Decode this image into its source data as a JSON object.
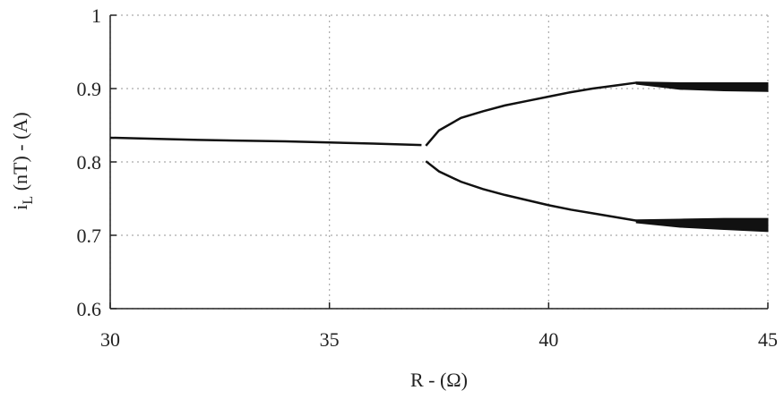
{
  "chart_data": {
    "type": "line",
    "xlabel": "R - (Ω)",
    "ylabel_main": "i",
    "ylabel_sub": "L",
    "ylabel_rest": " (nT) - (A)",
    "xlim": [
      30,
      45
    ],
    "xticks": [
      30,
      35,
      40,
      45
    ],
    "ylim": [
      0.6,
      1
    ],
    "yticks": [
      0.6,
      0.7,
      0.8,
      0.9,
      1
    ],
    "grid": true,
    "series": [
      {
        "color": "#111111",
        "x": [
          30,
          32,
          34,
          36,
          37.1
        ],
        "values": [
          0.833,
          0.83,
          0.828,
          0.825,
          0.823
        ]
      },
      {
        "color": "#111111",
        "x": [
          37.2,
          37.5,
          38,
          38.5,
          39,
          39.5,
          40,
          40.5,
          41,
          41.5,
          42
        ],
        "values": [
          0.822,
          0.843,
          0.86,
          0.869,
          0.877,
          0.883,
          0.889,
          0.895,
          0.9,
          0.904,
          0.908
        ]
      },
      {
        "color": "#111111",
        "x": [
          37.2,
          37.5,
          38,
          38.5,
          39,
          39.5,
          40,
          40.5,
          41,
          41.5,
          42
        ],
        "values": [
          0.801,
          0.787,
          0.773,
          0.763,
          0.755,
          0.748,
          0.741,
          0.735,
          0.73,
          0.725,
          0.72
        ]
      }
    ],
    "bands": [
      {
        "color": "#111111",
        "x": [
          42,
          43,
          44,
          45
        ],
        "high": [
          0.909,
          0.908,
          0.908,
          0.908
        ],
        "low": [
          0.906,
          0.899,
          0.897,
          0.896
        ]
      },
      {
        "color": "#111111",
        "x": [
          42,
          43,
          44,
          45
        ],
        "high": [
          0.721,
          0.722,
          0.723,
          0.723
        ],
        "low": [
          0.717,
          0.711,
          0.708,
          0.705
        ]
      }
    ]
  }
}
